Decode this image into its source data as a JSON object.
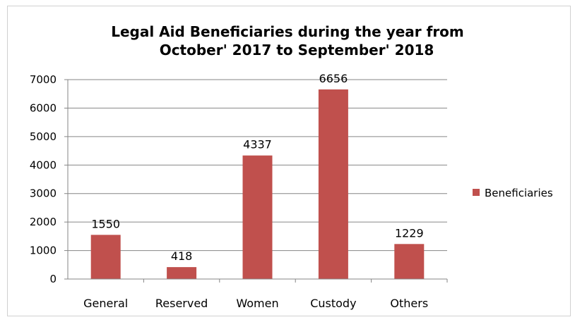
{
  "chart_data": {
    "type": "bar",
    "title_lines": [
      "Legal Aid Beneficiaries during the year from",
      "October' 2017 to September' 2018"
    ],
    "categories": [
      "General",
      "Reserved",
      "Women",
      "Custody",
      "Others"
    ],
    "series": [
      {
        "name": "Beneficiaries",
        "values": [
          1550,
          418,
          4337,
          6656,
          1229
        ],
        "color": "#c0504d"
      }
    ],
    "data_labels": [
      "1550",
      "418",
      "4337",
      "6656",
      "1229"
    ],
    "ylim": [
      0,
      7000
    ],
    "yticks": [
      "0",
      "1000",
      "2000",
      "3000",
      "4000",
      "5000",
      "6000",
      "7000"
    ],
    "xlabel": "",
    "ylabel": "",
    "grid": true,
    "legend_position": "right",
    "gridline_color": "#868686"
  }
}
